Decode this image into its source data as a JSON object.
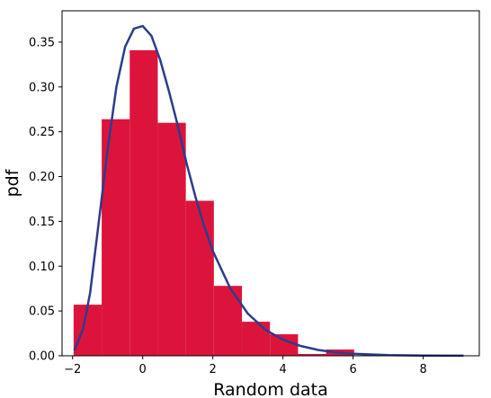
{
  "chart_data": {
    "type": "bar",
    "title": "",
    "xlabel": "Random data",
    "ylabel": "pdf",
    "xlim": [
      -2.3,
      9.6
    ],
    "ylim": [
      0.0,
      0.385
    ],
    "grid": false,
    "legend": "none",
    "x_ticks": [
      -2,
      0,
      2,
      4,
      6,
      8
    ],
    "x_tick_labels": [
      "−2",
      "0",
      "2",
      "4",
      "6",
      "8"
    ],
    "y_ticks": [
      0.0,
      0.05,
      0.1,
      0.15,
      0.2,
      0.25,
      0.3,
      0.35
    ],
    "y_tick_labels": [
      "0.00",
      "0.05",
      "0.10",
      "0.15",
      "0.20",
      "0.25",
      "0.30",
      "0.35"
    ],
    "histogram": {
      "color": "#dc143c",
      "bin_edges": [
        -1.97,
        -1.17,
        -0.37,
        0.43,
        1.23,
        2.03,
        2.83,
        3.63,
        4.43,
        5.23,
        6.03
      ],
      "values": [
        0.057,
        0.264,
        0.341,
        0.26,
        0.173,
        0.078,
        0.038,
        0.024,
        0.002,
        0.007
      ]
    },
    "curve": {
      "color": "#2b3d8c",
      "points": [
        [
          -1.95,
          0.006
        ],
        [
          -1.7,
          0.03
        ],
        [
          -1.5,
          0.07
        ],
        [
          -1.25,
          0.15
        ],
        [
          -1.0,
          0.23
        ],
        [
          -0.75,
          0.3
        ],
        [
          -0.5,
          0.345
        ],
        [
          -0.25,
          0.365
        ],
        [
          0.0,
          0.368
        ],
        [
          0.25,
          0.357
        ],
        [
          0.5,
          0.33
        ],
        [
          0.75,
          0.295
        ],
        [
          1.0,
          0.257
        ],
        [
          1.25,
          0.215
        ],
        [
          1.5,
          0.178
        ],
        [
          1.75,
          0.145
        ],
        [
          2.0,
          0.117
        ],
        [
          2.5,
          0.075
        ],
        [
          3.0,
          0.047
        ],
        [
          3.5,
          0.029
        ],
        [
          4.0,
          0.018
        ],
        [
          4.5,
          0.011
        ],
        [
          5.0,
          0.0065
        ],
        [
          5.5,
          0.0038
        ],
        [
          6.0,
          0.0022
        ],
        [
          7.0,
          0.0008
        ],
        [
          8.0,
          0.0003
        ],
        [
          9.15,
          0.0001
        ]
      ]
    }
  }
}
